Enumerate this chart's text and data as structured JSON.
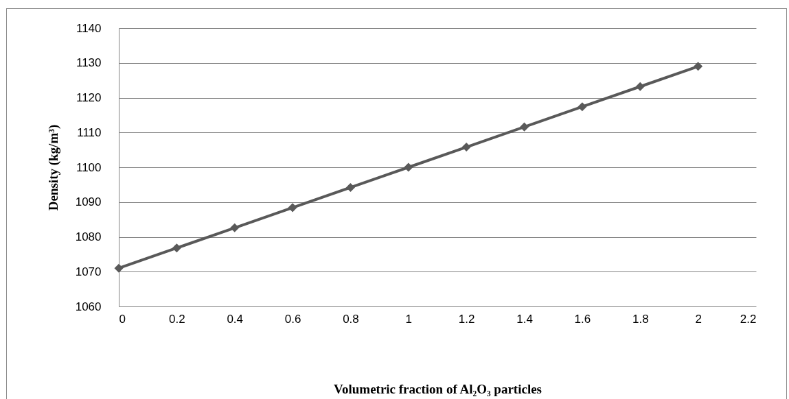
{
  "chart_data": {
    "type": "line",
    "xlabel": "Volumetric fraction of Al₂O₃ particles",
    "ylabel": "Density (kg/m³)",
    "x": [
      0,
      0.2,
      0.4,
      0.6,
      0.8,
      1,
      1.2,
      1.4,
      1.6,
      1.8,
      2
    ],
    "series": [
      {
        "color": "#595959",
        "values": [
          1071,
          1076.8,
          1082.6,
          1088.4,
          1094.2,
          1100,
          1105.8,
          1111.6,
          1117.4,
          1123.2,
          1129
        ]
      }
    ],
    "xlim": [
      0,
      2.2
    ],
    "xticks": [
      0,
      0.2,
      0.4,
      0.6,
      0.8,
      1,
      1.2,
      1.4,
      1.6,
      1.8,
      2,
      2.2
    ],
    "ylim": [
      1060,
      1140
    ],
    "yticks": [
      1060,
      1070,
      1080,
      1090,
      1100,
      1110,
      1120,
      1130,
      1140
    ],
    "grid": "y",
    "marker": "diamond",
    "line_style": "solid"
  }
}
